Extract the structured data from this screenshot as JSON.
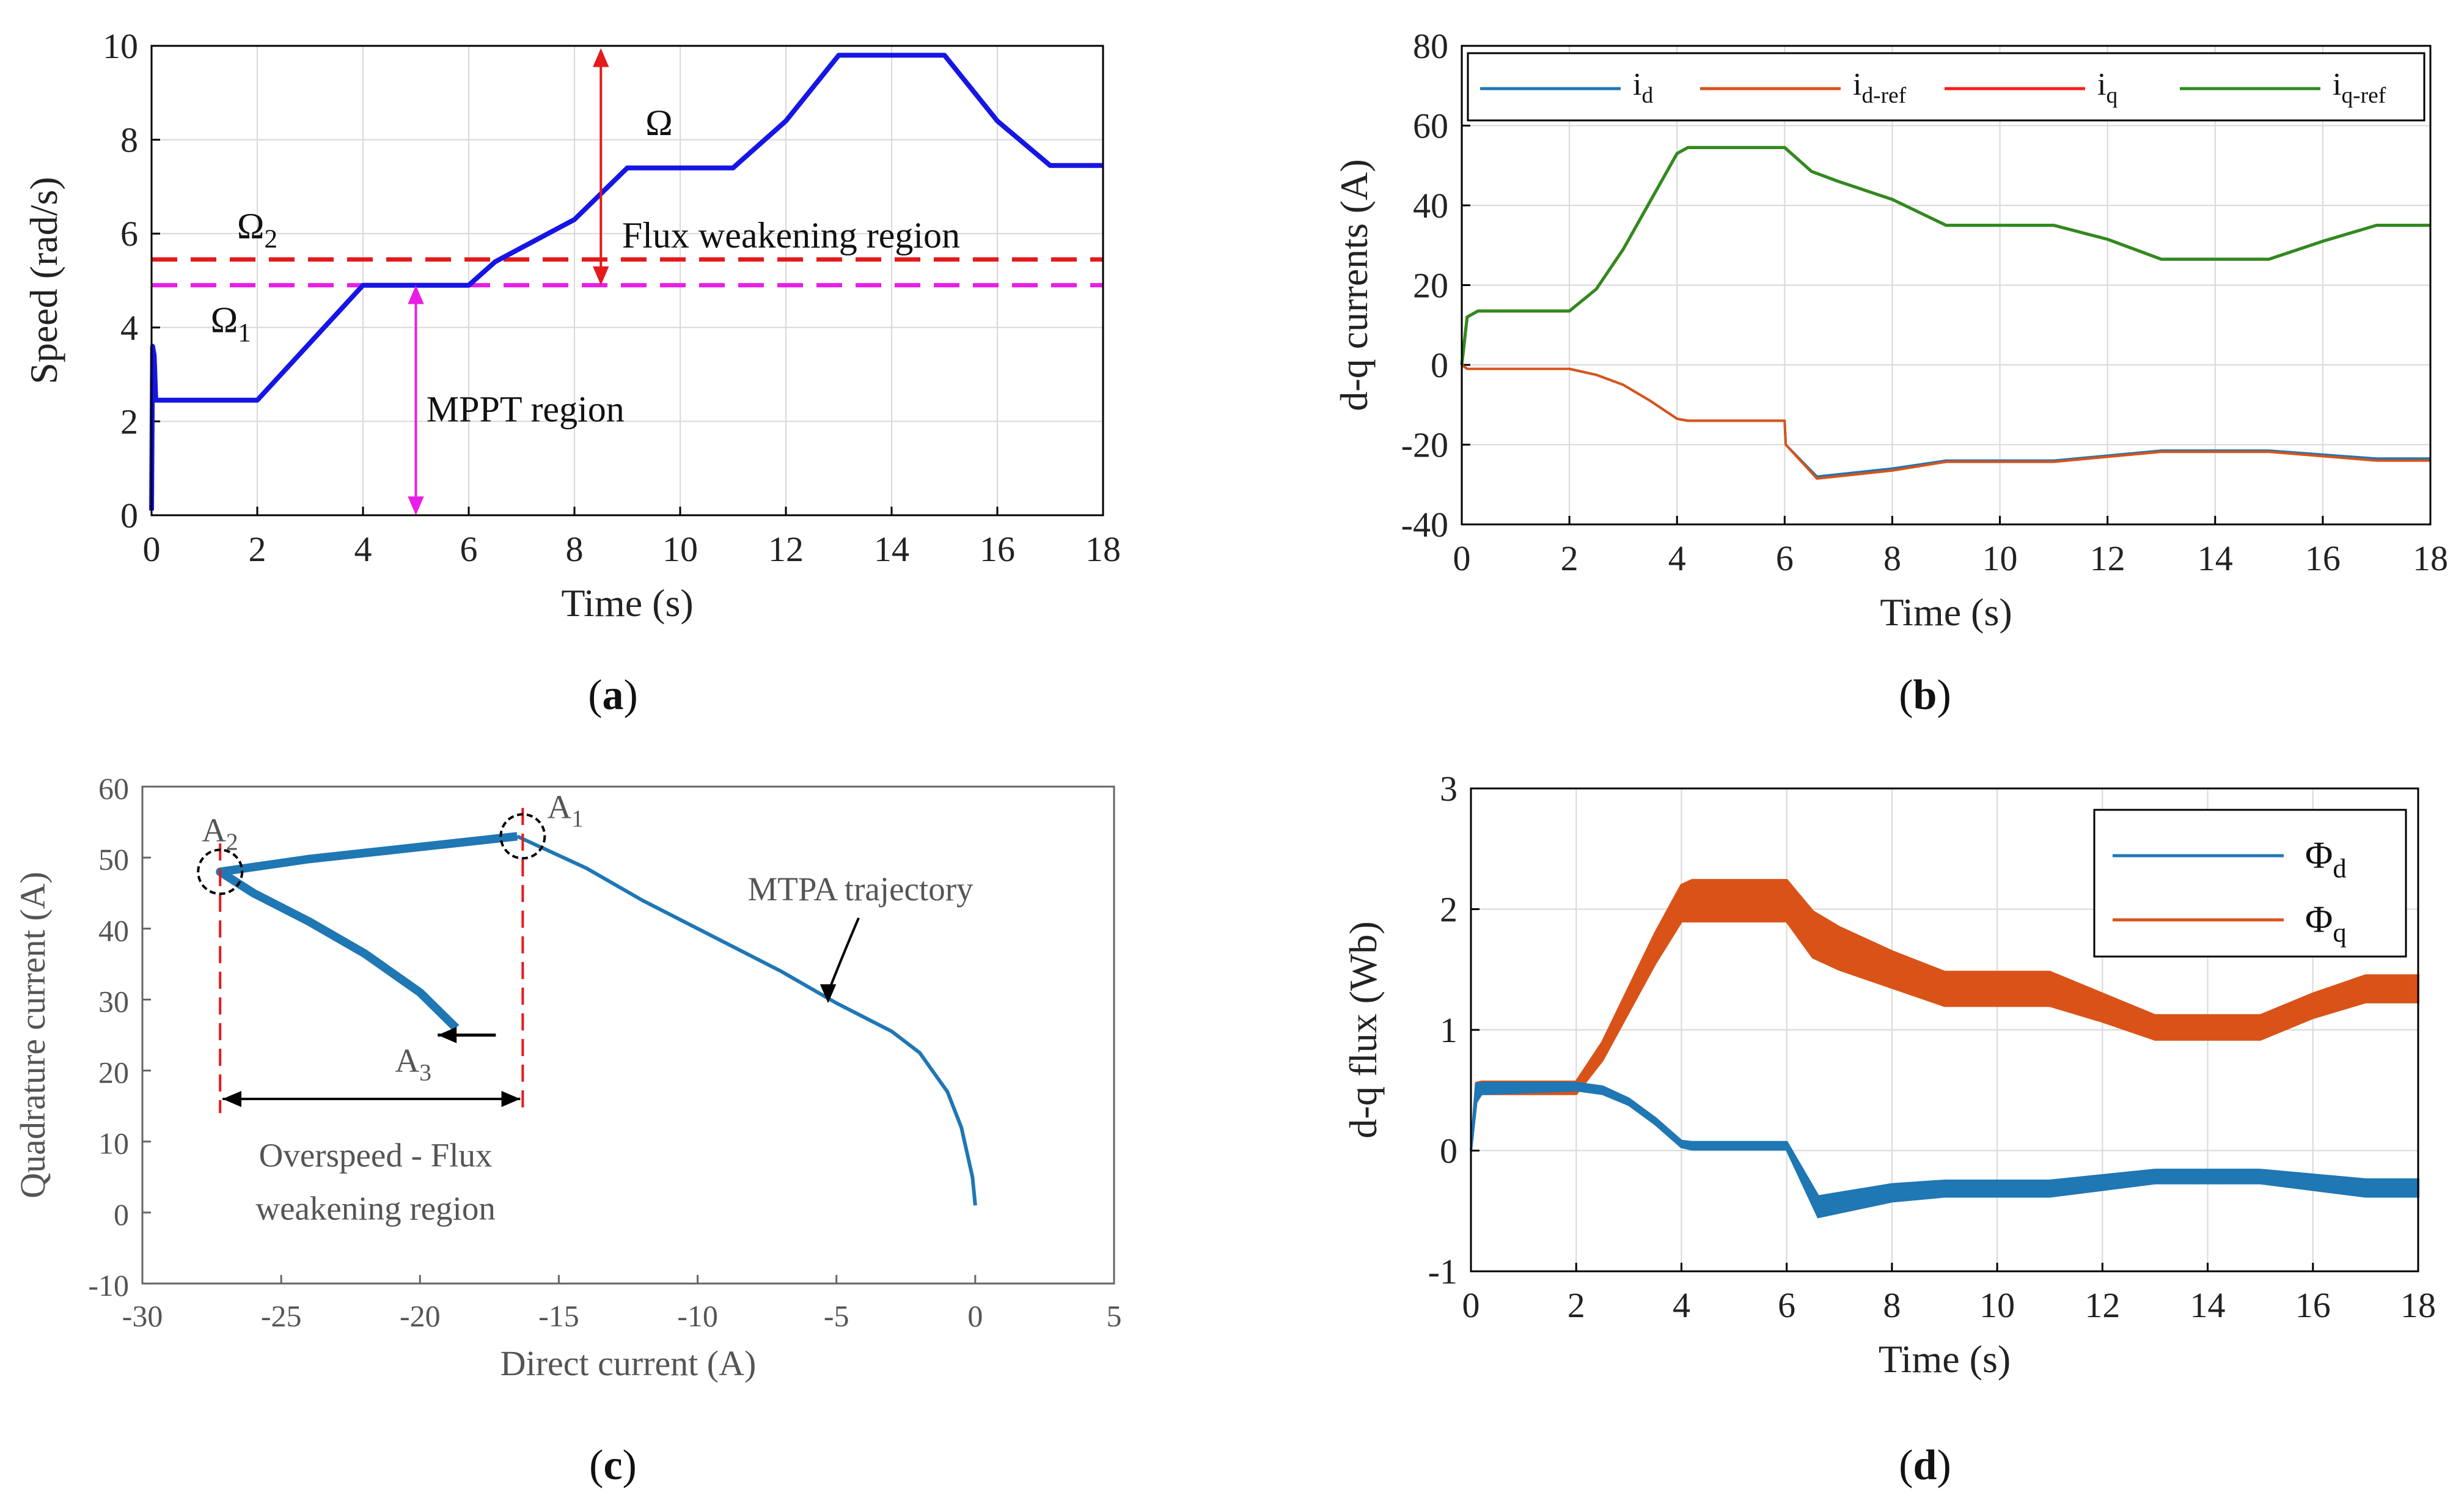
{
  "colors": {
    "blue_dark": "#1515e6",
    "red": "#e41a1c",
    "magenta": "#e91ee6",
    "matlab_blue": "#1f77b4",
    "matlab_orange": "#d95319",
    "bright_red": "#ff1a1a",
    "green": "#2e8b1f",
    "black": "#000000"
  },
  "chart_data": [
    {
      "id": "a",
      "type": "line",
      "caption": {
        "open": "(",
        "letter": "a",
        "close": ")"
      },
      "xlabel": "Time (s)",
      "ylabel": "Speed (rad/s)",
      "xlim": [
        0,
        18
      ],
      "ylim": [
        0,
        10
      ],
      "xticks": [
        "0",
        "2",
        "4",
        "6",
        "8",
        "10",
        "12",
        "14",
        "16",
        "18"
      ],
      "yticks": [
        "0",
        "2",
        "4",
        "6",
        "8",
        "10"
      ],
      "series": [
        {
          "name": "Ω",
          "color": "#1515e6",
          "x": [
            0,
            0.02,
            0.05,
            0.08,
            2,
            4,
            6,
            6.5,
            7,
            8,
            9,
            11,
            12,
            13,
            15,
            16,
            17,
            18
          ],
          "y": [
            0.1,
            3.6,
            3.4,
            2.45,
            2.45,
            4.9,
            4.9,
            5.4,
            5.7,
            6.3,
            7.4,
            7.4,
            8.4,
            9.8,
            9.8,
            8.4,
            7.45,
            7.45
          ]
        }
      ],
      "reference_lines": [
        {
          "name": "Ω2",
          "value": 5.45,
          "color": "#e41a1c"
        },
        {
          "name": "Ω1",
          "value": 4.9,
          "color": "#e91ee6"
        }
      ],
      "labels": {
        "omega": "Ω",
        "omega2": {
          "base": "Ω",
          "sub": "2"
        },
        "omega1": {
          "base": "Ω",
          "sub": "1"
        },
        "flux_region": "Flux weakening region",
        "mppt_region": "MPPT region"
      }
    },
    {
      "id": "b",
      "type": "line",
      "caption": {
        "open": "(",
        "letter": "b",
        "close": ")"
      },
      "xlabel": "Time (s)",
      "ylabel": "d-q currents (A)",
      "xlim": [
        0,
        18
      ],
      "ylim": [
        -40,
        80
      ],
      "xticks": [
        "0",
        "2",
        "4",
        "6",
        "8",
        "10",
        "12",
        "14",
        "16",
        "18"
      ],
      "yticks": [
        "-40",
        "-20",
        "0",
        "20",
        "40",
        "60",
        "80"
      ],
      "series": [
        {
          "name": "i_d",
          "color": "#1f77b4",
          "x": [
            0,
            0.1,
            2,
            2.5,
            3,
            3.5,
            4,
            4.2,
            6,
            6.02,
            6.6,
            8,
            9,
            11,
            13,
            15,
            17,
            18
          ],
          "y": [
            0,
            -1,
            -1,
            -2.5,
            -5,
            -9,
            -13.5,
            -14,
            -14,
            -20,
            -28,
            -26,
            -24,
            -24,
            -21.5,
            -21.5,
            -23.5,
            -23.5
          ]
        },
        {
          "name": "i_d-ref",
          "color": "#d95319",
          "x": [
            0,
            0.1,
            2,
            2.5,
            3,
            3.5,
            4,
            4.2,
            6,
            6.02,
            6.6,
            8,
            9,
            11,
            13,
            15,
            17,
            18
          ],
          "y": [
            0,
            -1,
            -1,
            -2.5,
            -5,
            -9,
            -13.5,
            -14,
            -14,
            -20,
            -28.5,
            -26.5,
            -24.3,
            -24.3,
            -21.8,
            -21.8,
            -24,
            -24
          ]
        },
        {
          "name": "i_q",
          "color": "#ff1a1a",
          "x": [
            0,
            0.1,
            0.3,
            2,
            2.5,
            3,
            3.5,
            4,
            4.2,
            6,
            6.5,
            7,
            8,
            9,
            11,
            12,
            13,
            15,
            16,
            17,
            18
          ],
          "y": [
            0,
            12,
            13.5,
            13.5,
            19,
            29,
            41,
            53,
            54.5,
            54.5,
            48.5,
            46,
            41.5,
            35,
            35,
            31.5,
            26.5,
            26.5,
            31,
            35,
            35
          ]
        },
        {
          "name": "i_q-ref",
          "color": "#2e8b1f",
          "x": [
            0,
            0.1,
            0.3,
            2,
            2.5,
            3,
            3.5,
            4,
            4.2,
            6,
            6.5,
            7,
            8,
            9,
            11,
            12,
            13,
            15,
            16,
            17,
            18
          ],
          "y": [
            0,
            12,
            13.5,
            13.5,
            19,
            29,
            41,
            53,
            54.5,
            54.5,
            48.5,
            46,
            41.5,
            35,
            35,
            31.5,
            26.5,
            26.5,
            31,
            35,
            35
          ]
        }
      ],
      "legend": [
        {
          "base": "i",
          "sub": "d",
          "color": "#1f77b4"
        },
        {
          "base": "i",
          "sub": "d-ref",
          "color": "#d95319"
        },
        {
          "base": "i",
          "sub": "q",
          "color": "#ff1a1a"
        },
        {
          "base": "i",
          "sub": "q-ref",
          "color": "#2e8b1f"
        }
      ],
      "legend_position": "top"
    },
    {
      "id": "c",
      "type": "line",
      "caption": {
        "open": "(",
        "letter": "c",
        "close": ")"
      },
      "xlabel": "Direct current (A)",
      "ylabel": "Quadrature current (A)",
      "xlim": [
        -30,
        5
      ],
      "ylim": [
        -10,
        60
      ],
      "xticks": [
        "-30",
        "-25",
        "-20",
        "-15",
        "-10",
        "-5",
        "0",
        "5"
      ],
      "yticks": [
        "-10",
        "0",
        "10",
        "20",
        "30",
        "40",
        "50",
        "60"
      ],
      "series": [
        {
          "name": "MTPA trajectory",
          "color": "#1f77b4",
          "x": [
            0,
            -0.1,
            -0.5,
            -1,
            -2,
            -3,
            -5,
            -7,
            -10,
            -12,
            -14,
            -16.5
          ],
          "y": [
            1,
            5,
            12,
            17,
            22.5,
            25.5,
            29.5,
            34,
            40,
            44,
            48.5,
            53
          ]
        },
        {
          "name": "overspeed",
          "color": "#1f77b4",
          "x": [
            -16.5,
            -20,
            -24,
            -27.2,
            -26,
            -24,
            -22,
            -20,
            -18.7
          ],
          "y": [
            53,
            51.5,
            49.8,
            48,
            45,
            41,
            36.5,
            31,
            26
          ]
        }
      ],
      "points": [
        {
          "label": {
            "base": "A",
            "sub": "1"
          },
          "x": -16.3,
          "y": 53
        },
        {
          "label": {
            "base": "A",
            "sub": "2"
          },
          "x": -27.2,
          "y": 48
        },
        {
          "label": {
            "base": "A",
            "sub": "3"
          },
          "x": -18.7,
          "y": 25
        }
      ],
      "labels": {
        "mtpa": "MTPA trajectory",
        "region_line1": "Overspeed - Flux",
        "region_line2": "weakening region"
      }
    },
    {
      "id": "d",
      "type": "line",
      "caption": {
        "open": "(",
        "letter": "d",
        "close": ")"
      },
      "xlabel": "Time (s)",
      "ylabel": "d-q flux (Wb)",
      "xlim": [
        0,
        18
      ],
      "ylim": [
        -1,
        3
      ],
      "xticks": [
        "0",
        "2",
        "4",
        "6",
        "8",
        "10",
        "12",
        "14",
        "16",
        "18"
      ],
      "yticks": [
        "-1",
        "0",
        "1",
        "2",
        "3"
      ],
      "series": [
        {
          "name": "Φ_d",
          "color": "#1f77b4",
          "x": [
            0,
            0.1,
            0.2,
            2,
            2.5,
            3,
            3.5,
            4,
            4.2,
            6,
            6.6,
            8,
            9,
            11,
            13,
            15,
            17,
            18
          ],
          "y_low": [
            0.0,
            0.4,
            0.47,
            0.5,
            0.47,
            0.38,
            0.22,
            0.03,
            0.01,
            0.01,
            -0.55,
            -0.42,
            -0.38,
            -0.38,
            -0.27,
            -0.27,
            -0.38,
            -0.38
          ],
          "y_high": [
            0.0,
            0.55,
            0.56,
            0.56,
            0.53,
            0.43,
            0.27,
            0.08,
            0.07,
            0.07,
            -0.38,
            -0.28,
            -0.25,
            -0.25,
            -0.16,
            -0.16,
            -0.24,
            -0.24
          ]
        },
        {
          "name": "Φ_q",
          "color": "#d95319",
          "x": [
            0,
            0.1,
            0.2,
            2,
            2.5,
            3,
            3.5,
            4,
            4.2,
            6,
            6.5,
            7,
            8,
            9,
            11,
            12,
            13,
            15,
            16,
            17,
            18
          ],
          "y_low": [
            0.0,
            0.46,
            0.47,
            0.47,
            0.75,
            1.15,
            1.55,
            1.9,
            1.9,
            1.9,
            1.6,
            1.5,
            1.35,
            1.2,
            1.2,
            1.07,
            0.92,
            0.92,
            1.1,
            1.23,
            1.23
          ],
          "y_high": [
            0.0,
            0.56,
            0.57,
            0.57,
            0.9,
            1.35,
            1.8,
            2.2,
            2.24,
            2.24,
            1.98,
            1.85,
            1.65,
            1.48,
            1.48,
            1.3,
            1.12,
            1.12,
            1.3,
            1.45,
            1.45
          ]
        }
      ],
      "legend": [
        {
          "base": "Φ",
          "sub": "d",
          "color": "#1f77b4"
        },
        {
          "base": "Φ",
          "sub": "q",
          "color": "#d95319"
        }
      ],
      "legend_position": "top-right"
    }
  ]
}
